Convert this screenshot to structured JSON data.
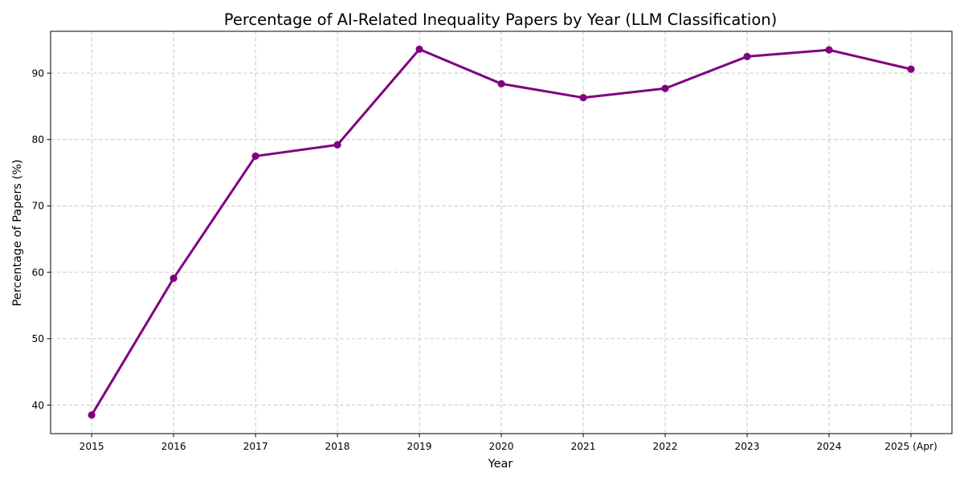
{
  "chart_data": {
    "type": "line",
    "title": "Percentage of AI-Related Inequality Papers by Year (LLM Classification)",
    "xlabel": "Year",
    "ylabel": "Percentage of Papers (%)",
    "categories": [
      "2015",
      "2016",
      "2017",
      "2018",
      "2019",
      "2020",
      "2021",
      "2022",
      "2023",
      "2024",
      "2025 (Apr)"
    ],
    "series": [
      {
        "values": [
          38.5,
          59.1,
          77.5,
          79.2,
          93.6,
          88.4,
          86.3,
          87.7,
          92.5,
          93.5,
          90.6
        ],
        "color": "#800080",
        "marker": "circle"
      }
    ],
    "ylim": [
      35.7,
      96.3
    ],
    "yticks": [
      40,
      50,
      60,
      70,
      80,
      90
    ],
    "grid": true,
    "legend": "none"
  }
}
